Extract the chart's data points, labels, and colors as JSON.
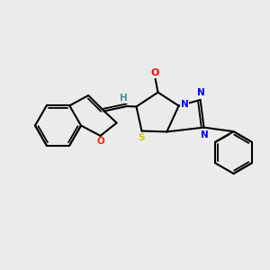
{
  "background_color": "#ebebeb",
  "bond_color": "#000000",
  "atom_colors": {
    "O_carbonyl": "#ff0000",
    "O_ring": "#ff2200",
    "N": "#0000ee",
    "S": "#cccc00",
    "H": "#4a9090",
    "C": "#000000"
  },
  "figsize": [
    3.0,
    3.0
  ],
  "dpi": 100
}
